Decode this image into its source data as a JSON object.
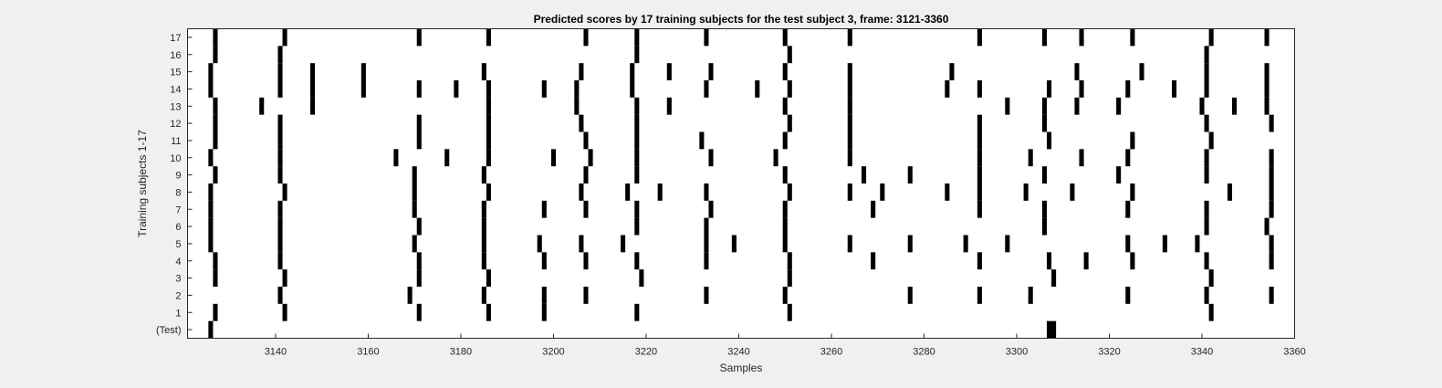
{
  "chart_data": {
    "type": "heatmap",
    "title": "Predicted scores by 17 training subjects for the test subject 3, frame: 3121-3360",
    "xlabel": "Samples",
    "ylabel": "Training subjects 1-17",
    "xlim": [
      3121,
      3360
    ],
    "xticks": [
      "3140",
      "3160",
      "3180",
      "3200",
      "3220",
      "3240",
      "3260",
      "3280",
      "3300",
      "3320",
      "3340",
      "3360"
    ],
    "yticks": [
      "(Test)",
      "1",
      "2",
      "3",
      "4",
      "5",
      "6",
      "7",
      "8",
      "9",
      "10",
      "11",
      "12",
      "13",
      "14",
      "15",
      "16",
      "17"
    ],
    "mark_color": "#000000",
    "rows": [
      {
        "label": "(Test)",
        "events": [
          [
            3126,
            1
          ],
          [
            3307,
            2
          ]
        ]
      },
      {
        "label": "1",
        "events": [
          [
            3127,
            1
          ],
          [
            3142,
            1
          ],
          [
            3171,
            1
          ],
          [
            3186,
            1
          ],
          [
            3198,
            1
          ],
          [
            3218,
            1
          ],
          [
            3251,
            1
          ],
          [
            3342,
            1
          ]
        ]
      },
      {
        "label": "2",
        "events": [
          [
            3141,
            1
          ],
          [
            3169,
            1
          ],
          [
            3185,
            1
          ],
          [
            3198,
            1
          ],
          [
            3207,
            1
          ],
          [
            3233,
            1
          ],
          [
            3250,
            1
          ],
          [
            3277,
            1
          ],
          [
            3292,
            1
          ],
          [
            3303,
            1
          ],
          [
            3324,
            1
          ],
          [
            3341,
            1
          ],
          [
            3355,
            1
          ]
        ]
      },
      {
        "label": "3",
        "events": [
          [
            3127,
            1
          ],
          [
            3142,
            1
          ],
          [
            3171,
            1
          ],
          [
            3186,
            1
          ],
          [
            3219,
            1
          ],
          [
            3251,
            1
          ],
          [
            3308,
            1
          ],
          [
            3342,
            1
          ]
        ]
      },
      {
        "label": "4",
        "events": [
          [
            3127,
            1
          ],
          [
            3141,
            1
          ],
          [
            3171,
            1
          ],
          [
            3185,
            1
          ],
          [
            3198,
            1
          ],
          [
            3207,
            1
          ],
          [
            3218,
            1
          ],
          [
            3233,
            1
          ],
          [
            3251,
            1
          ],
          [
            3269,
            1
          ],
          [
            3292,
            1
          ],
          [
            3307,
            1
          ],
          [
            3315,
            1
          ],
          [
            3325,
            1
          ],
          [
            3341,
            1
          ],
          [
            3355,
            1
          ]
        ]
      },
      {
        "label": "5",
        "events": [
          [
            3126,
            1
          ],
          [
            3141,
            1
          ],
          [
            3170,
            1
          ],
          [
            3185,
            1
          ],
          [
            3197,
            1
          ],
          [
            3206,
            1
          ],
          [
            3215,
            1
          ],
          [
            3233,
            1
          ],
          [
            3239,
            1
          ],
          [
            3250,
            1
          ],
          [
            3264,
            1
          ],
          [
            3277,
            1
          ],
          [
            3289,
            1
          ],
          [
            3298,
            1
          ],
          [
            3324,
            1
          ],
          [
            3332,
            1
          ],
          [
            3339,
            1
          ],
          [
            3355,
            1
          ]
        ]
      },
      {
        "label": "6",
        "events": [
          [
            3126,
            1
          ],
          [
            3141,
            1
          ],
          [
            3171,
            1
          ],
          [
            3185,
            1
          ],
          [
            3218,
            1
          ],
          [
            3233,
            1
          ],
          [
            3250,
            1
          ],
          [
            3306,
            1
          ],
          [
            3341,
            1
          ],
          [
            3354,
            1
          ]
        ]
      },
      {
        "label": "7",
        "events": [
          [
            3126,
            1
          ],
          [
            3141,
            1
          ],
          [
            3170,
            1
          ],
          [
            3185,
            1
          ],
          [
            3198,
            1
          ],
          [
            3207,
            1
          ],
          [
            3218,
            1
          ],
          [
            3234,
            1
          ],
          [
            3250,
            1
          ],
          [
            3269,
            1
          ],
          [
            3292,
            1
          ],
          [
            3306,
            1
          ],
          [
            3324,
            1
          ],
          [
            3341,
            1
          ],
          [
            3355,
            1
          ]
        ]
      },
      {
        "label": "8",
        "events": [
          [
            3126,
            1
          ],
          [
            3142,
            1
          ],
          [
            3170,
            1
          ],
          [
            3186,
            1
          ],
          [
            3206,
            1
          ],
          [
            3216,
            1
          ],
          [
            3223,
            1
          ],
          [
            3233,
            1
          ],
          [
            3251,
            1
          ],
          [
            3264,
            1
          ],
          [
            3271,
            1
          ],
          [
            3285,
            1
          ],
          [
            3292,
            1
          ],
          [
            3302,
            1
          ],
          [
            3312,
            1
          ],
          [
            3325,
            1
          ],
          [
            3346,
            1
          ],
          [
            3355,
            1
          ]
        ]
      },
      {
        "label": "9",
        "events": [
          [
            3127,
            1
          ],
          [
            3141,
            1
          ],
          [
            3170,
            1
          ],
          [
            3185,
            1
          ],
          [
            3207,
            1
          ],
          [
            3218,
            1
          ],
          [
            3250,
            1
          ],
          [
            3267,
            1
          ],
          [
            3277,
            1
          ],
          [
            3292,
            1
          ],
          [
            3306,
            1
          ],
          [
            3322,
            1
          ],
          [
            3341,
            1
          ],
          [
            3355,
            1
          ]
        ]
      },
      {
        "label": "10",
        "events": [
          [
            3126,
            1
          ],
          [
            3141,
            1
          ],
          [
            3166,
            1
          ],
          [
            3177,
            1
          ],
          [
            3186,
            1
          ],
          [
            3200,
            1
          ],
          [
            3208,
            1
          ],
          [
            3218,
            1
          ],
          [
            3234,
            1
          ],
          [
            3248,
            1
          ],
          [
            3264,
            1
          ],
          [
            3292,
            1
          ],
          [
            3303,
            1
          ],
          [
            3314,
            1
          ],
          [
            3324,
            1
          ],
          [
            3341,
            1
          ],
          [
            3355,
            1
          ]
        ]
      },
      {
        "label": "11",
        "events": [
          [
            3127,
            1
          ],
          [
            3141,
            1
          ],
          [
            3171,
            1
          ],
          [
            3186,
            1
          ],
          [
            3207,
            1
          ],
          [
            3218,
            1
          ],
          [
            3232,
            1
          ],
          [
            3250,
            1
          ],
          [
            3264,
            1
          ],
          [
            3292,
            1
          ],
          [
            3307,
            1
          ],
          [
            3325,
            1
          ],
          [
            3342,
            1
          ]
        ]
      },
      {
        "label": "12",
        "events": [
          [
            3127,
            1
          ],
          [
            3141,
            1
          ],
          [
            3171,
            1
          ],
          [
            3186,
            1
          ],
          [
            3206,
            1
          ],
          [
            3218,
            1
          ],
          [
            3251,
            1
          ],
          [
            3264,
            1
          ],
          [
            3292,
            1
          ],
          [
            3306,
            1
          ],
          [
            3341,
            1
          ],
          [
            3355,
            1
          ]
        ]
      },
      {
        "label": "13",
        "events": [
          [
            3127,
            1
          ],
          [
            3137,
            1
          ],
          [
            3148,
            1
          ],
          [
            3186,
            1
          ],
          [
            3205,
            1
          ],
          [
            3218,
            1
          ],
          [
            3225,
            1
          ],
          [
            3250,
            1
          ],
          [
            3264,
            1
          ],
          [
            3298,
            1
          ],
          [
            3306,
            1
          ],
          [
            3313,
            1
          ],
          [
            3322,
            1
          ],
          [
            3340,
            1
          ],
          [
            3347,
            1
          ],
          [
            3354,
            1
          ]
        ]
      },
      {
        "label": "14",
        "events": [
          [
            3126,
            1
          ],
          [
            3141,
            1
          ],
          [
            3148,
            1
          ],
          [
            3159,
            1
          ],
          [
            3171,
            1
          ],
          [
            3179,
            1
          ],
          [
            3186,
            1
          ],
          [
            3198,
            1
          ],
          [
            3205,
            1
          ],
          [
            3217,
            1
          ],
          [
            3233,
            1
          ],
          [
            3244,
            1
          ],
          [
            3251,
            1
          ],
          [
            3264,
            1
          ],
          [
            3285,
            1
          ],
          [
            3292,
            1
          ],
          [
            3307,
            1
          ],
          [
            3314,
            1
          ],
          [
            3324,
            1
          ],
          [
            3334,
            1
          ],
          [
            3341,
            1
          ],
          [
            3354,
            1
          ]
        ]
      },
      {
        "label": "15",
        "events": [
          [
            3126,
            1
          ],
          [
            3141,
            1
          ],
          [
            3148,
            1
          ],
          [
            3159,
            1
          ],
          [
            3185,
            1
          ],
          [
            3206,
            1
          ],
          [
            3217,
            1
          ],
          [
            3225,
            1
          ],
          [
            3234,
            1
          ],
          [
            3250,
            1
          ],
          [
            3264,
            1
          ],
          [
            3286,
            1
          ],
          [
            3313,
            1
          ],
          [
            3327,
            1
          ],
          [
            3341,
            1
          ],
          [
            3354,
            1
          ]
        ]
      },
      {
        "label": "16",
        "events": [
          [
            3127,
            1
          ],
          [
            3141,
            1
          ],
          [
            3218,
            1
          ],
          [
            3251,
            1
          ],
          [
            3341,
            1
          ]
        ]
      },
      {
        "label": "17",
        "events": [
          [
            3127,
            1
          ],
          [
            3142,
            1
          ],
          [
            3171,
            1
          ],
          [
            3186,
            1
          ],
          [
            3207,
            1
          ],
          [
            3218,
            1
          ],
          [
            3233,
            1
          ],
          [
            3250,
            1
          ],
          [
            3264,
            1
          ],
          [
            3292,
            1
          ],
          [
            3306,
            1
          ],
          [
            3314,
            1
          ],
          [
            3325,
            1
          ],
          [
            3342,
            1
          ],
          [
            3354,
            1
          ]
        ]
      }
    ]
  }
}
